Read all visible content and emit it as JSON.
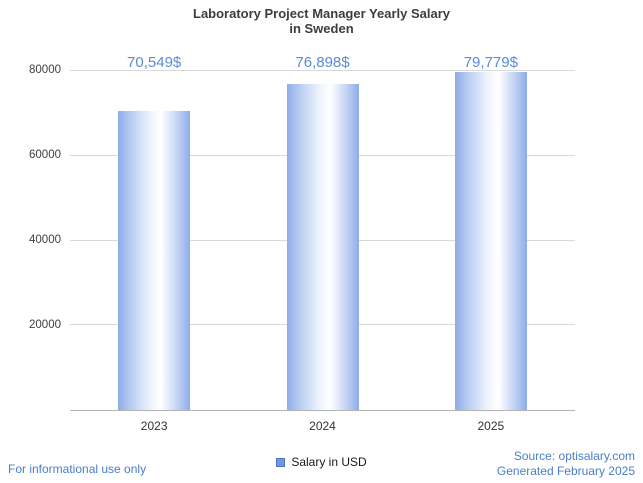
{
  "title": {
    "line1": "Laboratory Project Manager Yearly Salary",
    "line2": "in Sweden"
  },
  "legend": {
    "label": "Salary in USD"
  },
  "footer": {
    "left": "For informational use only",
    "source": "Source: optisalary.com",
    "generated": "Generated February 2025"
  },
  "colors": {
    "accent_blue": "#4a7ec9",
    "value_label_blue": "#5b8bd4",
    "bar_edge_blue": "#8eace8",
    "grid_gray": "#d9d9d9",
    "axis_gray": "#b3b3b3",
    "title_gray": "#3d3d3d"
  },
  "chart_data": {
    "type": "bar",
    "title": "Laboratory Project Manager Yearly Salary in Sweden",
    "categories": [
      "2023",
      "2024",
      "2025"
    ],
    "values": [
      70549,
      76898,
      79779
    ],
    "value_labels": [
      "70,549$",
      "76,898$",
      "79,779$"
    ],
    "series_name": "Salary in USD",
    "xlabel": "",
    "ylabel": "",
    "ylim": [
      0,
      80000
    ],
    "yticks": [
      20000,
      40000,
      60000,
      80000
    ],
    "grid": true,
    "legend_position": "bottom"
  }
}
